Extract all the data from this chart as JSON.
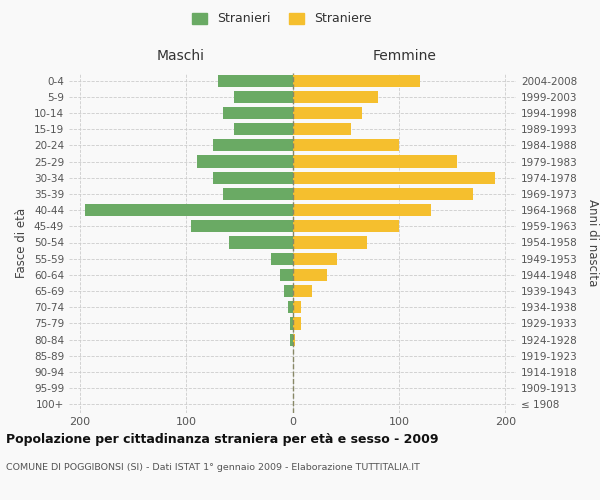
{
  "age_groups": [
    "0-4",
    "5-9",
    "10-14",
    "15-19",
    "20-24",
    "25-29",
    "30-34",
    "35-39",
    "40-44",
    "45-49",
    "50-54",
    "55-59",
    "60-64",
    "65-69",
    "70-74",
    "75-79",
    "80-84",
    "85-89",
    "90-94",
    "95-99",
    "100+"
  ],
  "birth_years": [
    "2004-2008",
    "1999-2003",
    "1994-1998",
    "1989-1993",
    "1984-1988",
    "1979-1983",
    "1974-1978",
    "1969-1973",
    "1964-1968",
    "1959-1963",
    "1954-1958",
    "1949-1953",
    "1944-1948",
    "1939-1943",
    "1934-1938",
    "1929-1933",
    "1924-1928",
    "1919-1923",
    "1914-1918",
    "1909-1913",
    "≤ 1908"
  ],
  "maschi": [
    70,
    55,
    65,
    55,
    75,
    90,
    75,
    65,
    195,
    95,
    60,
    20,
    12,
    8,
    4,
    2,
    2,
    0,
    0,
    0,
    0
  ],
  "femmine": [
    120,
    80,
    65,
    55,
    100,
    155,
    190,
    170,
    130,
    100,
    70,
    42,
    32,
    18,
    8,
    8,
    2,
    0,
    0,
    0,
    0
  ],
  "maschi_color": "#6aaa64",
  "femmine_color": "#f5bf2e",
  "bg_color": "#f9f9f9",
  "grid_color": "#cccccc",
  "title": "Popolazione per cittadinanza straniera per età e sesso - 2009",
  "subtitle": "COMUNE DI POGGIBONSI (SI) - Dati ISTAT 1° gennaio 2009 - Elaborazione TUTTITALIA.IT",
  "ylabel_left": "Fasce di età",
  "ylabel_right": "Anni di nascita",
  "header_left": "Maschi",
  "header_right": "Femmine",
  "legend_maschi": "Stranieri",
  "legend_femmine": "Straniere",
  "xlim": 210
}
